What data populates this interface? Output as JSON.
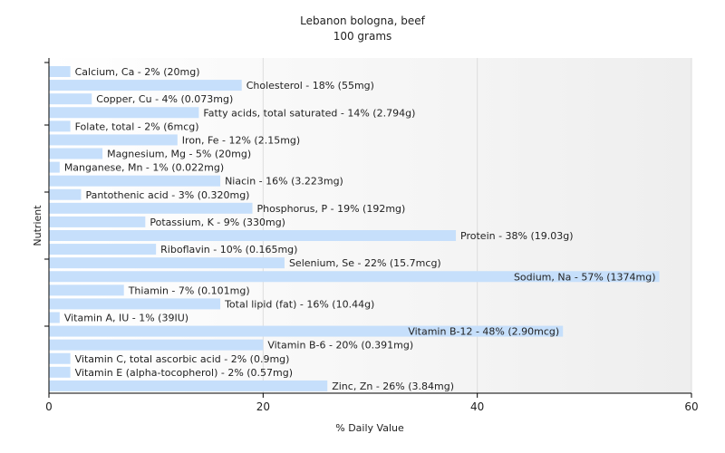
{
  "chart_data": {
    "type": "bar",
    "orientation": "horizontal",
    "title": "Lebanon bologna, beef",
    "subtitle": "100 grams",
    "xlabel": "% Daily Value",
    "ylabel": "Nutrient",
    "xlim": [
      0,
      60
    ],
    "xticks": [
      0,
      20,
      40,
      60
    ],
    "grid": true,
    "bar_color": "#c6dffb",
    "categories": [
      "Calcium, Ca",
      "Cholesterol",
      "Copper, Cu",
      "Fatty acids, total saturated",
      "Folate, total",
      "Iron, Fe",
      "Magnesium, Mg",
      "Manganese, Mn",
      "Niacin",
      "Pantothenic acid",
      "Phosphorus, P",
      "Potassium, K",
      "Protein",
      "Riboflavin",
      "Selenium, Se",
      "Sodium, Na",
      "Thiamin",
      "Total lipid (fat)",
      "Vitamin A, IU",
      "Vitamin B-12",
      "Vitamin B-6",
      "Vitamin C, total ascorbic acid",
      "Vitamin E (alpha-tocopherol)",
      "Zinc, Zn"
    ],
    "values": [
      2,
      18,
      4,
      14,
      2,
      12,
      5,
      1,
      16,
      3,
      19,
      9,
      38,
      10,
      22,
      57,
      7,
      16,
      1,
      48,
      20,
      2,
      2,
      26
    ],
    "labels": [
      "Calcium, Ca - 2% (20mg)",
      "Cholesterol - 18% (55mg)",
      "Copper, Cu - 4% (0.073mg)",
      "Fatty acids, total saturated - 14% (2.794g)",
      "Folate, total - 2% (6mcg)",
      "Iron, Fe - 12% (2.15mg)",
      "Magnesium, Mg - 5% (20mg)",
      "Manganese, Mn - 1% (0.022mg)",
      "Niacin - 16% (3.223mg)",
      "Pantothenic acid - 3% (0.320mg)",
      "Phosphorus, P - 19% (192mg)",
      "Potassium, K - 9% (330mg)",
      "Protein - 38% (19.03g)",
      "Riboflavin - 10% (0.165mg)",
      "Selenium, Se - 22% (15.7mcg)",
      "Sodium, Na - 57% (1374mg)",
      "Thiamin - 7% (0.101mg)",
      "Total lipid (fat) - 16% (10.44g)",
      "Vitamin A, IU - 1% (39IU)",
      "Vitamin B-12 - 48% (2.90mcg)",
      "Vitamin B-6 - 20% (0.391mg)",
      "Vitamin C, total ascorbic acid - 2% (0.9mg)",
      "Vitamin E (alpha-tocopherol) - 2% (0.57mg)",
      "Zinc, Zn - 26% (3.84mg)"
    ],
    "inside_label_indices": [
      15,
      19
    ]
  }
}
